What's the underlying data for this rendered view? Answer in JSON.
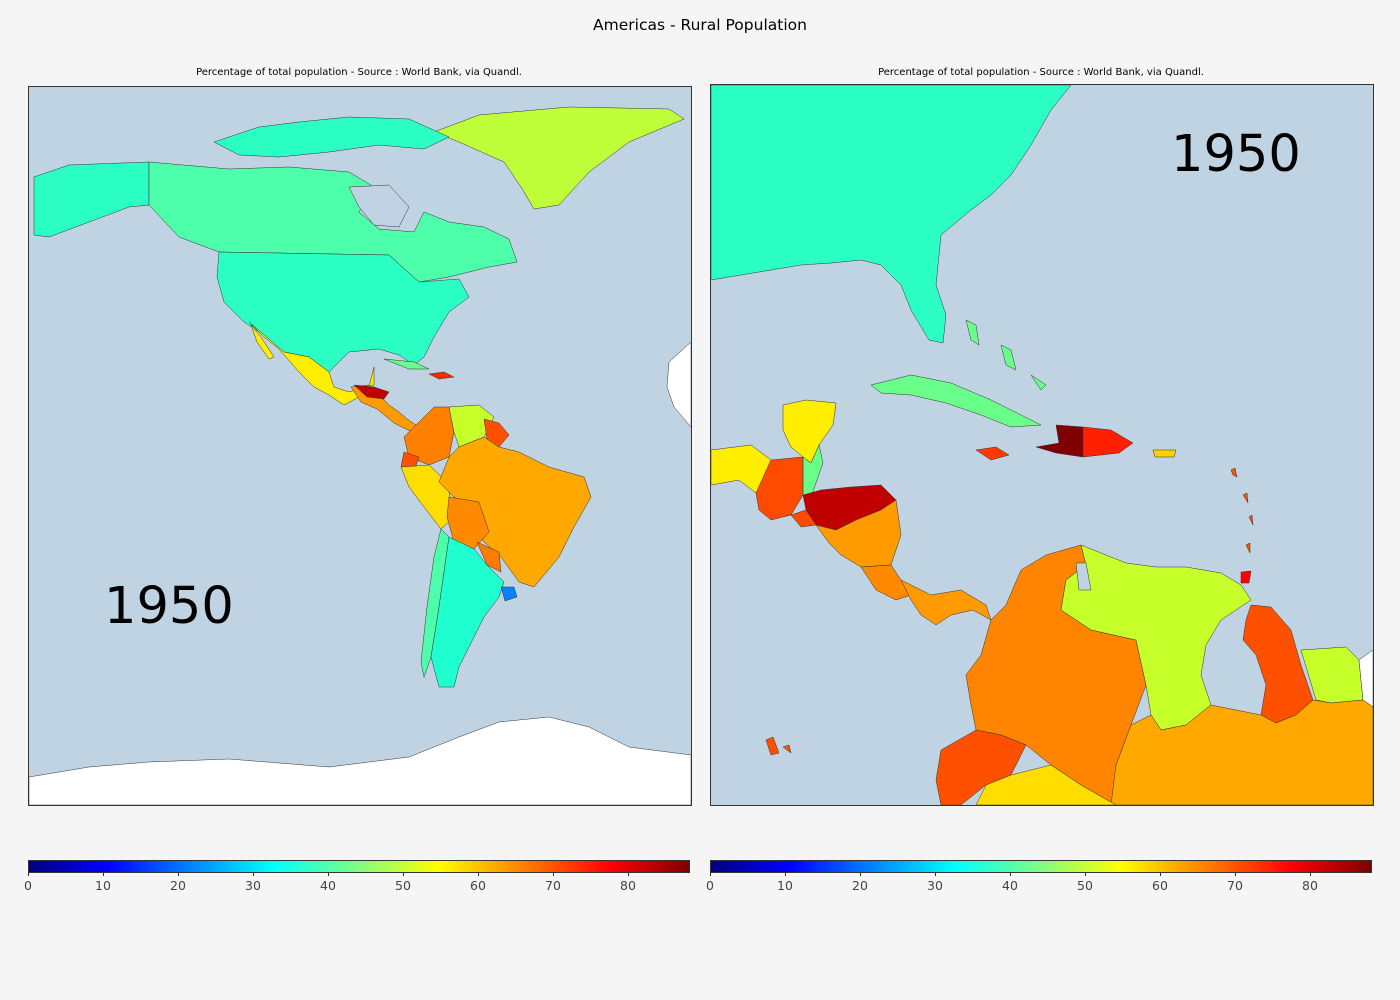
{
  "title": "Americas - Rural Population",
  "legend": {
    "colormap": "jet",
    "min": 0,
    "max": 88,
    "ticks": [
      "0",
      "10",
      "20",
      "30",
      "40",
      "50",
      "60",
      "70",
      "80"
    ]
  },
  "colors": {
    "ocean": "#bfd3e3",
    "no_data": "#ffffff"
  },
  "panels": [
    {
      "subtitle": "Percentage of total population - Source : World Bank, via Quandl.",
      "year": "1950",
      "region": "Americas"
    },
    {
      "subtitle": "Percentage of total population - Source : World Bank, via Quandl.",
      "year": "1950",
      "region": "Caribbean and Central America"
    }
  ]
}
